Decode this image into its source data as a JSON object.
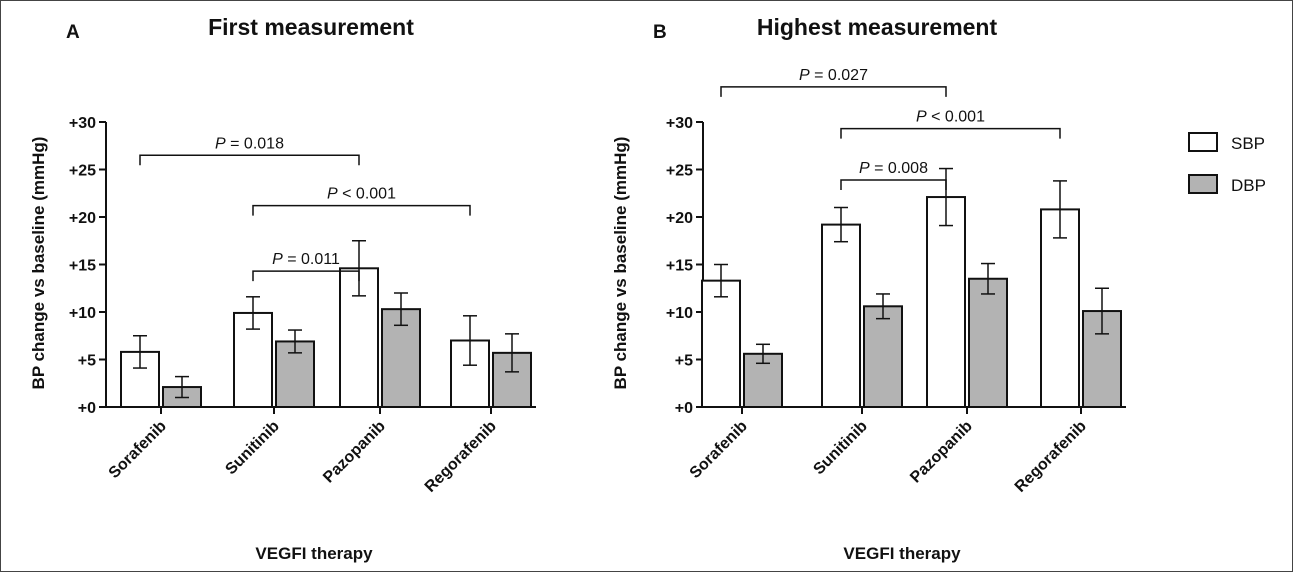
{
  "chart_data": [
    {
      "type": "bar",
      "panel": "A",
      "title": "First measurement",
      "xlabel": "VEGFI therapy",
      "ylabel": "BP change vs baseline (mmHg)",
      "ylim": [
        0,
        30
      ],
      "yticks": [
        "+0",
        "+5",
        "+10",
        "+15",
        "+20",
        "+25",
        "+30"
      ],
      "categories": [
        "Sorafenib",
        "Sunitinib",
        "Pazopanib",
        "Regorafenib"
      ],
      "series": [
        {
          "name": "SBP",
          "values": [
            5.8,
            9.9,
            14.6,
            7.0
          ],
          "errors": [
            1.7,
            1.7,
            2.9,
            2.6
          ]
        },
        {
          "name": "DBP",
          "values": [
            2.1,
            6.9,
            10.3,
            5.7
          ],
          "errors": [
            1.1,
            1.2,
            1.7,
            2.0
          ]
        }
      ],
      "comparisons": [
        {
          "label": "P = 0.018",
          "p_text": "P",
          "rest_text": " = 0.018",
          "from": 0,
          "to": 2,
          "level": 26.5
        },
        {
          "label": "P < 0.001",
          "p_text": "P",
          "rest_text": " < 0.001",
          "from": 1,
          "to": 3,
          "level": 21.2
        },
        {
          "label": "P = 0.011",
          "p_text": "P",
          "rest_text": " = 0.011",
          "from": 1,
          "to": 2,
          "level": 14.3
        }
      ]
    },
    {
      "type": "bar",
      "panel": "B",
      "title": "Highest measurement",
      "xlabel": "VEGFI therapy",
      "ylabel": "BP change vs baseline (mmHg)",
      "ylim": [
        0,
        30
      ],
      "yticks": [
        "+0",
        "+5",
        "+10",
        "+15",
        "+20",
        "+25",
        "+30"
      ],
      "categories": [
        "Sorafenib",
        "Sunitinib",
        "Pazopanib",
        "Regorafenib"
      ],
      "series": [
        {
          "name": "SBP",
          "values": [
            13.3,
            19.2,
            22.1,
            20.8
          ],
          "errors": [
            1.7,
            1.8,
            3.0,
            3.0
          ]
        },
        {
          "name": "DBP",
          "values": [
            5.6,
            10.6,
            13.5,
            10.1
          ],
          "errors": [
            1.0,
            1.3,
            1.6,
            2.4
          ]
        }
      ],
      "comparisons": [
        {
          "label": "P = 0.027",
          "p_text": "P",
          "rest_text": " = 0.027",
          "from": 0,
          "to": 2,
          "level": 33.7
        },
        {
          "label": "P < 0.001",
          "p_text": "P",
          "rest_text": " < 0.001",
          "from": 1,
          "to": 3,
          "level": 29.3
        },
        {
          "label": "P = 0.008",
          "p_text": "P",
          "rest_text": " = 0.008",
          "from": 1,
          "to": 2,
          "level": 23.9
        }
      ]
    }
  ],
  "legend": {
    "placement": "right",
    "items": [
      {
        "name": "SBP",
        "color": "#ffffff"
      },
      {
        "name": "DBP",
        "color": "#b3b3b3"
      }
    ]
  },
  "colors": {
    "sbp": "#ffffff",
    "dbp": "#b3b3b3",
    "stroke": "#111111"
  }
}
